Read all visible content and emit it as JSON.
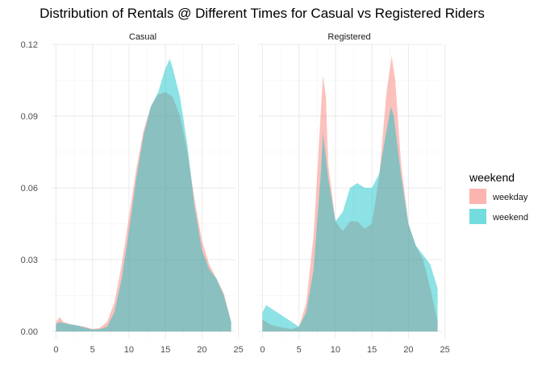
{
  "chart_data": {
    "type": "area",
    "title": "Distribution of Rentals @ Different Times for Casual vs Registered Riders",
    "xlabel": "",
    "ylabel": "",
    "xlim": [
      -0.6,
      24.6
    ],
    "ylim": [
      -0.003,
      0.12
    ],
    "x_ticks": [
      0,
      5,
      10,
      15,
      20,
      25
    ],
    "y_ticks": [
      0.0,
      0.03,
      0.06,
      0.09,
      0.12
    ],
    "y_tick_labels": [
      "0.00",
      "0.03",
      "0.06",
      "0.09",
      "0.12"
    ],
    "grid": true,
    "legend": {
      "title": "weekend",
      "position": "right",
      "entries": [
        {
          "label": "weekday",
          "color": "#F8766D"
        },
        {
          "label": "weekend",
          "color": "#00BFC4"
        }
      ]
    },
    "panels": [
      {
        "label": "Casual",
        "series": [
          {
            "name": "weekday",
            "color": "#F8766D",
            "points": [
              [
                0,
                0.004
              ],
              [
                0.5,
                0.006
              ],
              [
                1,
                0.004
              ],
              [
                2,
                0.003
              ],
              [
                3,
                0.0025
              ],
              [
                4,
                0.002
              ],
              [
                5,
                0.001
              ],
              [
                6,
                0.0015
              ],
              [
                7,
                0.004
              ],
              [
                8,
                0.012
              ],
              [
                9,
                0.028
              ],
              [
                10,
                0.048
              ],
              [
                11,
                0.068
              ],
              [
                12,
                0.084
              ],
              [
                13,
                0.094
              ],
              [
                14,
                0.099
              ],
              [
                15,
                0.1
              ],
              [
                16,
                0.098
              ],
              [
                17,
                0.09
              ],
              [
                18,
                0.075
              ],
              [
                19,
                0.055
              ],
              [
                20,
                0.038
              ],
              [
                21,
                0.028
              ],
              [
                22,
                0.022
              ],
              [
                23,
                0.016
              ],
              [
                24,
                0.004
              ]
            ]
          },
          {
            "name": "weekend",
            "color": "#00BFC4",
            "points": [
              [
                0,
                0.003
              ],
              [
                0.5,
                0.004
              ],
              [
                1,
                0.0035
              ],
              [
                2,
                0.003
              ],
              [
                3,
                0.0025
              ],
              [
                4,
                0.0015
              ],
              [
                5,
                0.0008
              ],
              [
                6,
                0.001
              ],
              [
                7,
                0.002
              ],
              [
                8,
                0.008
              ],
              [
                9,
                0.022
              ],
              [
                10,
                0.042
              ],
              [
                11,
                0.064
              ],
              [
                12,
                0.082
              ],
              [
                13,
                0.094
              ],
              [
                14,
                0.1
              ],
              [
                15,
                0.11
              ],
              [
                15.6,
                0.114
              ],
              [
                16,
                0.11
              ],
              [
                17,
                0.098
              ],
              [
                18,
                0.078
              ],
              [
                19,
                0.052
              ],
              [
                20,
                0.034
              ],
              [
                21,
                0.026
              ],
              [
                22,
                0.022
              ],
              [
                23,
                0.015
              ],
              [
                24,
                0.004
              ]
            ]
          }
        ]
      },
      {
        "label": "Registered",
        "series": [
          {
            "name": "weekday",
            "color": "#F8766D",
            "points": [
              [
                0,
                0.005
              ],
              [
                1,
                0.003
              ],
              [
                2,
                0.002
              ],
              [
                3,
                0.0015
              ],
              [
                4,
                0.001
              ],
              [
                5,
                0.002
              ],
              [
                6,
                0.012
              ],
              [
                7,
                0.04
              ],
              [
                8,
                0.092
              ],
              [
                8.3,
                0.107
              ],
              [
                8.7,
                0.098
              ],
              [
                9,
                0.07
              ],
              [
                10,
                0.046
              ],
              [
                11,
                0.042
              ],
              [
                12,
                0.046
              ],
              [
                13,
                0.046
              ],
              [
                14,
                0.043
              ],
              [
                15,
                0.045
              ],
              [
                16,
                0.065
              ],
              [
                17,
                0.1
              ],
              [
                17.7,
                0.115
              ],
              [
                18.2,
                0.105
              ],
              [
                19,
                0.07
              ],
              [
                20,
                0.045
              ],
              [
                21,
                0.036
              ],
              [
                22,
                0.03
              ],
              [
                23,
                0.018
              ],
              [
                24,
                0.004
              ]
            ]
          },
          {
            "name": "weekend",
            "color": "#00BFC4",
            "points": [
              [
                0,
                0.008
              ],
              [
                0.5,
                0.011
              ],
              [
                1,
                0.01
              ],
              [
                2,
                0.008
              ],
              [
                3,
                0.006
              ],
              [
                4,
                0.004
              ],
              [
                5,
                0.002
              ],
              [
                6,
                0.008
              ],
              [
                7,
                0.026
              ],
              [
                8,
                0.066
              ],
              [
                8.3,
                0.083
              ],
              [
                9,
                0.064
              ],
              [
                10,
                0.046
              ],
              [
                11,
                0.05
              ],
              [
                12,
                0.06
              ],
              [
                13,
                0.062
              ],
              [
                14,
                0.06
              ],
              [
                15,
                0.06
              ],
              [
                16,
                0.066
              ],
              [
                17,
                0.084
              ],
              [
                17.6,
                0.094
              ],
              [
                18,
                0.09
              ],
              [
                19,
                0.065
              ],
              [
                20,
                0.045
              ],
              [
                21,
                0.036
              ],
              [
                22,
                0.032
              ],
              [
                23,
                0.028
              ],
              [
                24,
                0.018
              ]
            ]
          }
        ]
      }
    ]
  }
}
